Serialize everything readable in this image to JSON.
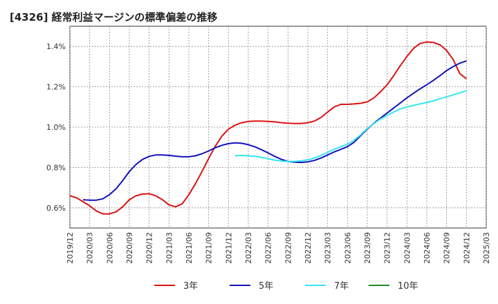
{
  "chart_data": {
    "type": "line",
    "title": "[4326]  経常利益マージンの標準偏差の推移",
    "xlabel": "",
    "ylabel": "",
    "x_ticks": [
      "2019/12",
      "2020/03",
      "2020/06",
      "2020/09",
      "2020/12",
      "2021/03",
      "2021/06",
      "2021/09",
      "2021/12",
      "2022/03",
      "2022/06",
      "2022/09",
      "2022/12",
      "2023/03",
      "2023/06",
      "2023/09",
      "2023/12",
      "2024/03",
      "2024/06",
      "2024/09",
      "2024/12",
      "2025/03"
    ],
    "y_ticks": [
      {
        "value": 0.6,
        "label": "0.6%"
      },
      {
        "value": 0.8,
        "label": "0.8%"
      },
      {
        "value": 1.0,
        "label": "1.0%"
      },
      {
        "value": 1.2,
        "label": "1.2%"
      },
      {
        "value": 1.4,
        "label": "1.4%"
      }
    ],
    "ylim": [
      0.5,
      1.5
    ],
    "grid": true,
    "legend_position": "bottom",
    "series": [
      {
        "name": "3年",
        "color": "#dd1111",
        "points": [
          [
            "2019/12",
            0.66
          ],
          [
            "2020/01",
            0.65
          ],
          [
            "2020/02",
            0.63
          ],
          [
            "2020/03",
            0.61
          ],
          [
            "2020/04",
            0.585
          ],
          [
            "2020/05",
            0.57
          ],
          [
            "2020/06",
            0.57
          ],
          [
            "2020/07",
            0.58
          ],
          [
            "2020/08",
            0.605
          ],
          [
            "2020/09",
            0.64
          ],
          [
            "2020/10",
            0.66
          ],
          [
            "2020/11",
            0.668
          ],
          [
            "2020/12",
            0.67
          ],
          [
            "2021/01",
            0.66
          ],
          [
            "2021/02",
            0.64
          ],
          [
            "2021/03",
            0.615
          ],
          [
            "2021/04",
            0.605
          ],
          [
            "2021/05",
            0.62
          ],
          [
            "2021/06",
            0.665
          ],
          [
            "2021/07",
            0.72
          ],
          [
            "2021/08",
            0.78
          ],
          [
            "2021/09",
            0.845
          ],
          [
            "2021/10",
            0.905
          ],
          [
            "2021/11",
            0.955
          ],
          [
            "2021/12",
            0.99
          ],
          [
            "2022/01",
            1.01
          ],
          [
            "2022/02",
            1.022
          ],
          [
            "2022/03",
            1.028
          ],
          [
            "2022/04",
            1.03
          ],
          [
            "2022/05",
            1.03
          ],
          [
            "2022/06",
            1.028
          ],
          [
            "2022/07",
            1.026
          ],
          [
            "2022/08",
            1.022
          ],
          [
            "2022/09",
            1.02
          ],
          [
            "2022/10",
            1.018
          ],
          [
            "2022/11",
            1.018
          ],
          [
            "2022/12",
            1.022
          ],
          [
            "2023/01",
            1.03
          ],
          [
            "2023/02",
            1.048
          ],
          [
            "2023/03",
            1.075
          ],
          [
            "2023/04",
            1.1
          ],
          [
            "2023/05",
            1.113
          ],
          [
            "2023/06",
            1.113
          ],
          [
            "2023/07",
            1.115
          ],
          [
            "2023/08",
            1.118
          ],
          [
            "2023/09",
            1.125
          ],
          [
            "2023/10",
            1.145
          ],
          [
            "2023/11",
            1.175
          ],
          [
            "2023/12",
            1.21
          ],
          [
            "2024/01",
            1.255
          ],
          [
            "2024/02",
            1.305
          ],
          [
            "2024/03",
            1.35
          ],
          [
            "2024/04",
            1.39
          ],
          [
            "2024/05",
            1.415
          ],
          [
            "2024/06",
            1.422
          ],
          [
            "2024/07",
            1.42
          ],
          [
            "2024/08",
            1.408
          ],
          [
            "2024/09",
            1.38
          ],
          [
            "2024/10",
            1.335
          ],
          [
            "2024/11",
            1.265
          ],
          [
            "2024/12",
            1.24
          ]
        ]
      },
      {
        "name": "5年",
        "color": "#1111bb",
        "points": [
          [
            "2020/02",
            0.64
          ],
          [
            "2020/03",
            0.638
          ],
          [
            "2020/04",
            0.638
          ],
          [
            "2020/05",
            0.645
          ],
          [
            "2020/06",
            0.665
          ],
          [
            "2020/07",
            0.695
          ],
          [
            "2020/08",
            0.735
          ],
          [
            "2020/09",
            0.78
          ],
          [
            "2020/10",
            0.815
          ],
          [
            "2020/11",
            0.84
          ],
          [
            "2020/12",
            0.855
          ],
          [
            "2021/01",
            0.862
          ],
          [
            "2021/02",
            0.862
          ],
          [
            "2021/03",
            0.86
          ],
          [
            "2021/04",
            0.856
          ],
          [
            "2021/05",
            0.853
          ],
          [
            "2021/06",
            0.853
          ],
          [
            "2021/07",
            0.858
          ],
          [
            "2021/08",
            0.868
          ],
          [
            "2021/09",
            0.882
          ],
          [
            "2021/10",
            0.898
          ],
          [
            "2021/11",
            0.91
          ],
          [
            "2021/12",
            0.918
          ],
          [
            "2022/01",
            0.922
          ],
          [
            "2022/02",
            0.92
          ],
          [
            "2022/03",
            0.913
          ],
          [
            "2022/04",
            0.902
          ],
          [
            "2022/05",
            0.888
          ],
          [
            "2022/06",
            0.872
          ],
          [
            "2022/07",
            0.855
          ],
          [
            "2022/08",
            0.84
          ],
          [
            "2022/09",
            0.83
          ],
          [
            "2022/10",
            0.826
          ],
          [
            "2022/11",
            0.825
          ],
          [
            "2022/12",
            0.828
          ],
          [
            "2023/01",
            0.835
          ],
          [
            "2023/02",
            0.847
          ],
          [
            "2023/03",
            0.862
          ],
          [
            "2023/04",
            0.877
          ],
          [
            "2023/05",
            0.89
          ],
          [
            "2023/06",
            0.903
          ],
          [
            "2023/07",
            0.925
          ],
          [
            "2023/08",
            0.958
          ],
          [
            "2023/09",
            0.99
          ],
          [
            "2023/10",
            1.02
          ],
          [
            "2023/11",
            1.045
          ],
          [
            "2023/12",
            1.07
          ],
          [
            "2024/01",
            1.095
          ],
          [
            "2024/02",
            1.12
          ],
          [
            "2024/03",
            1.145
          ],
          [
            "2024/04",
            1.168
          ],
          [
            "2024/05",
            1.19
          ],
          [
            "2024/06",
            1.21
          ],
          [
            "2024/07",
            1.232
          ],
          [
            "2024/08",
            1.255
          ],
          [
            "2024/09",
            1.28
          ],
          [
            "2024/10",
            1.3
          ],
          [
            "2024/11",
            1.317
          ],
          [
            "2024/12",
            1.328
          ]
        ]
      },
      {
        "name": "7年",
        "color": "#33e6f0",
        "points": [
          [
            "2022/01",
            0.858
          ],
          [
            "2022/02",
            0.86
          ],
          [
            "2022/03",
            0.858
          ],
          [
            "2022/04",
            0.855
          ],
          [
            "2022/05",
            0.85
          ],
          [
            "2022/06",
            0.843
          ],
          [
            "2022/07",
            0.837
          ],
          [
            "2022/08",
            0.832
          ],
          [
            "2022/09",
            0.83
          ],
          [
            "2022/10",
            0.83
          ],
          [
            "2022/11",
            0.833
          ],
          [
            "2022/12",
            0.838
          ],
          [
            "2023/01",
            0.847
          ],
          [
            "2023/02",
            0.86
          ],
          [
            "2023/03",
            0.875
          ],
          [
            "2023/04",
            0.89
          ],
          [
            "2023/05",
            0.903
          ],
          [
            "2023/06",
            0.915
          ],
          [
            "2023/07",
            0.935
          ],
          [
            "2023/08",
            0.962
          ],
          [
            "2023/09",
            0.993
          ],
          [
            "2023/10",
            1.018
          ],
          [
            "2023/11",
            1.04
          ],
          [
            "2023/12",
            1.058
          ],
          [
            "2024/01",
            1.075
          ],
          [
            "2024/02",
            1.09
          ],
          [
            "2024/03",
            1.1
          ],
          [
            "2024/04",
            1.108
          ],
          [
            "2024/05",
            1.115
          ],
          [
            "2024/06",
            1.122
          ],
          [
            "2024/07",
            1.13
          ],
          [
            "2024/08",
            1.14
          ],
          [
            "2024/09",
            1.15
          ],
          [
            "2024/10",
            1.16
          ],
          [
            "2024/11",
            1.17
          ],
          [
            "2024/12",
            1.18
          ]
        ]
      },
      {
        "name": "10年",
        "color": "#228822",
        "points": []
      }
    ]
  }
}
